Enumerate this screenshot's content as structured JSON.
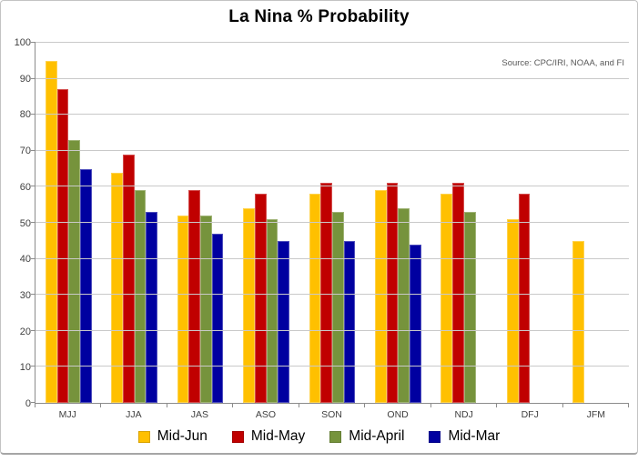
{
  "chart_data": {
    "type": "bar",
    "title": "La Nina % Probability",
    "source_note": "Source: CPC/IRI, NOAA, and FI",
    "categories": [
      "MJJ",
      "JJA",
      "JAS",
      "ASO",
      "SON",
      "OND",
      "NDJ",
      "DFJ",
      "JFM"
    ],
    "series": [
      {
        "name": "Mid-Jun",
        "color": "#FFC000",
        "values": [
          95,
          64,
          52,
          54,
          58,
          59,
          58,
          51,
          45
        ]
      },
      {
        "name": "Mid-May",
        "color": "#C00000",
        "values": [
          87,
          69,
          59,
          58,
          61,
          61,
          61,
          58,
          null
        ]
      },
      {
        "name": "Mid-April",
        "color": "#76933C",
        "values": [
          73,
          59,
          52,
          51,
          53,
          54,
          53,
          null,
          null
        ]
      },
      {
        "name": "Mid-Mar",
        "color": "#0000A0",
        "values": [
          65,
          53,
          47,
          45,
          45,
          44,
          null,
          null,
          null
        ]
      }
    ],
    "ylim": [
      0,
      100
    ],
    "ytick_step": 10,
    "grid": true,
    "legend_position": "bottom",
    "axis_color": "#8C8C8C",
    "gridline_color": "#C9C9C9",
    "tick_label_color": "#3F3F3F",
    "source_note_color": "#595959"
  }
}
